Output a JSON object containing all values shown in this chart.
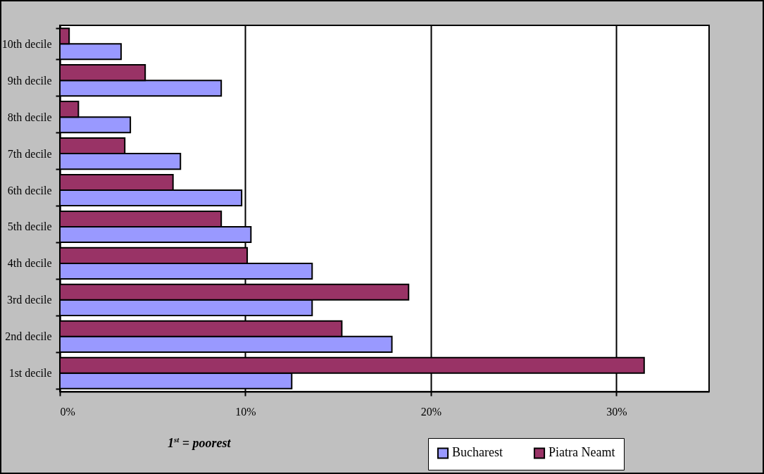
{
  "chart_data": {
    "type": "bar",
    "orientation": "horizontal",
    "categories": [
      "10th decile",
      "9th decile",
      "8th decile",
      "7th decile",
      "6th decile",
      "5th decile",
      "4th decile",
      "3rd decile",
      "2nd decile",
      "1st decile"
    ],
    "series": [
      {
        "name": "Bucharest",
        "color": "#9999ff",
        "values": [
          3.3,
          8.7,
          3.8,
          6.5,
          9.8,
          10.3,
          13.6,
          13.6,
          17.9,
          12.5
        ]
      },
      {
        "name": "Piatra Neamt",
        "color": "#993366",
        "values": [
          0.5,
          4.6,
          1.0,
          3.5,
          6.1,
          8.7,
          10.1,
          18.8,
          15.2,
          31.5
        ]
      }
    ],
    "xlim": [
      0,
      35
    ],
    "xticks": [
      {
        "value": 0,
        "label": "0%"
      },
      {
        "value": 10,
        "label": "10%"
      },
      {
        "value": 20,
        "label": "20%"
      },
      {
        "value": 30,
        "label": "30%"
      }
    ],
    "grid": "x",
    "legend": "bottom right",
    "annotations": [
      "1$^{st}$ = poorest"
    ]
  }
}
